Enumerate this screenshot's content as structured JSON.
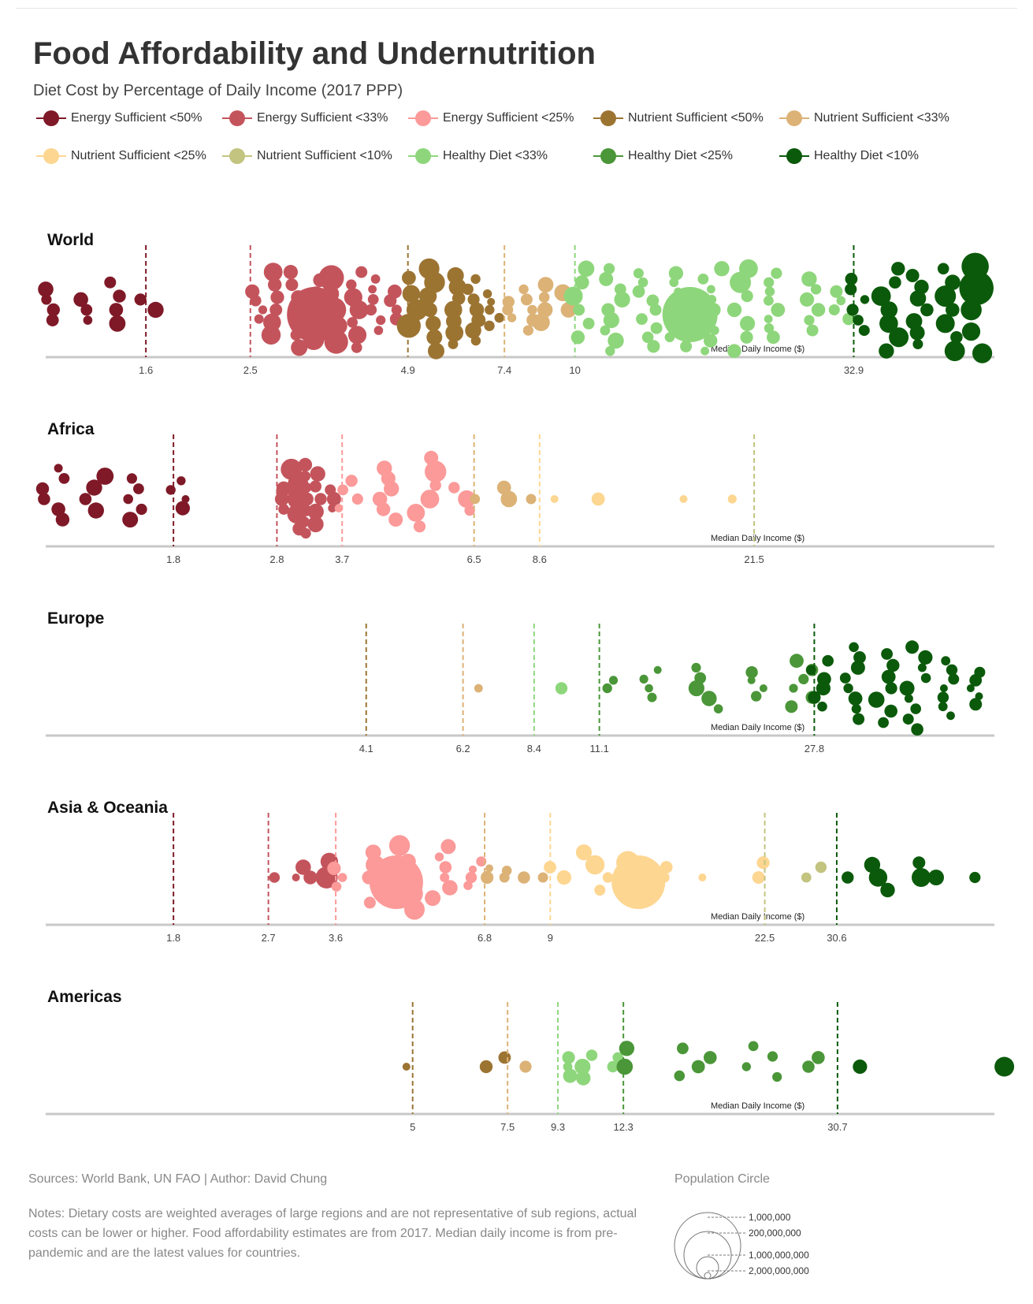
{
  "header": {
    "title": "Food Affordability and Undernutrition",
    "subtitle": "Diet Cost by Percentage of Daily Income (2017 PPP)"
  },
  "legend": [
    {
      "label": "Energy Sufficient <50%",
      "color": "#7f1927"
    },
    {
      "label": "Energy Sufficient <33%",
      "color": "#c4545c"
    },
    {
      "label": "Energy Sufficient <25%",
      "color": "#fb9a99"
    },
    {
      "label": "Nutrient Sufficient <50%",
      "color": "#9c7432"
    },
    {
      "label": "Nutrient Sufficient <33%",
      "color": "#dcb277"
    },
    {
      "label": "Nutrient Sufficient <25%",
      "color": "#fdd691"
    },
    {
      "label": "Nutrient Sufficient <10%",
      "color": "#c2c47f"
    },
    {
      "label": "Healthy Diet <33%",
      "color": "#8ed67b"
    },
    {
      "label": "Healthy Diet <25%",
      "color": "#4a9638"
    },
    {
      "label": "Healthy Diet <10%",
      "color": "#0b5a0b"
    }
  ],
  "axis_label": "Median Daily Income ($)",
  "chart_data": [
    {
      "type": "scatter",
      "title": "World",
      "xlabel": "Median Daily Income ($)",
      "thresholds": [
        {
          "value": 1.6,
          "label": "1.6",
          "category": 0
        },
        {
          "value": 2.5,
          "label": "2.5",
          "category": 1
        },
        {
          "value": 4.9,
          "label": "4.9",
          "category": 3
        },
        {
          "value": 7.4,
          "label": "7.4",
          "category": 4
        },
        {
          "value": 10,
          "label": "10",
          "category": 7
        },
        {
          "value": 32.9,
          "label": "32.9",
          "category": 9
        }
      ],
      "groups": [
        {
          "category": 0,
          "counts": [
            4,
            3,
            4,
            2
          ],
          "sizes": [
            18,
            18,
            24,
            18
          ]
        },
        {
          "category": 1,
          "counts": [
            4,
            6,
            9,
            12,
            10,
            8,
            6,
            4
          ],
          "sizes": [
            16,
            22,
            22,
            26,
            28,
            22,
            18,
            16
          ],
          "big": 70
        },
        {
          "category": 3,
          "counts": [
            4,
            8,
            9,
            7,
            5
          ],
          "sizes": [
            28,
            24,
            20,
            18,
            14
          ]
        },
        {
          "category": 4,
          "counts": [
            3,
            5,
            4,
            2
          ],
          "sizes": [
            14,
            18,
            22,
            30
          ]
        },
        {
          "category": 7,
          "counts": [
            6,
            9,
            12,
            14,
            12,
            10,
            8,
            6,
            4
          ],
          "sizes": [
            24,
            18,
            16,
            16,
            18,
            24,
            16,
            18,
            16
          ],
          "big": 70
        },
        {
          "category": 9,
          "counts": [
            6,
            8,
            9,
            8,
            6
          ],
          "sizes": [
            18,
            24,
            20,
            24,
            38
          ]
        }
      ]
    },
    {
      "type": "scatter",
      "title": "Africa",
      "xlabel": "Median Daily Income ($)",
      "thresholds": [
        {
          "value": 1.8,
          "label": "1.8",
          "category": 0
        },
        {
          "value": 2.8,
          "label": "2.8",
          "category": 1
        },
        {
          "value": 3.7,
          "label": "3.7",
          "category": 2
        },
        {
          "value": 6.5,
          "label": "6.5",
          "category": 4
        },
        {
          "value": 8.6,
          "label": "8.6",
          "category": 5
        },
        {
          "value": 21.5,
          "label": "21.5",
          "category": 6
        }
      ],
      "groups": [
        {
          "category": 0,
          "counts": [
            6,
            4,
            5,
            4
          ],
          "sizes": [
            18,
            20,
            18,
            16
          ]
        },
        {
          "category": 1,
          "counts": [
            3,
            5,
            7,
            5,
            3
          ],
          "sizes": [
            18,
            26,
            20,
            22,
            16
          ]
        },
        {
          "category": 2,
          "counts": [
            4,
            6,
            6,
            3
          ],
          "sizes": [
            16,
            18,
            24,
            20
          ]
        },
        {
          "category": 4,
          "counts": [
            1,
            2,
            1
          ],
          "sizes": [
            12,
            20,
            20
          ]
        },
        {
          "category": 5,
          "counts": [
            1,
            1,
            1,
            1
          ],
          "sizes": [
            14,
            16,
            12,
            12
          ]
        }
      ]
    },
    {
      "type": "scatter",
      "title": "Europe",
      "xlabel": "Median Daily Income ($)",
      "thresholds": [
        {
          "value": 4.1,
          "label": "4.1",
          "category": 3
        },
        {
          "value": 6.2,
          "label": "6.2",
          "category": 4
        },
        {
          "value": 8.4,
          "label": "8.4",
          "category": 7
        },
        {
          "value": 11.1,
          "label": "11.1",
          "category": 8
        },
        {
          "value": 27.8,
          "label": "27.8",
          "category": 9
        }
      ],
      "groups": [
        {
          "category": 4,
          "counts": [
            1
          ],
          "sizes": [
            14
          ]
        },
        {
          "category": 7,
          "counts": [
            1
          ],
          "sizes": [
            14
          ]
        },
        {
          "category": 8,
          "counts": [
            2,
            4,
            5,
            4,
            6
          ],
          "sizes": [
            14,
            16,
            18,
            14,
            16
          ]
        },
        {
          "category": 9,
          "counts": [
            6,
            8,
            10,
            9,
            7,
            5
          ],
          "sizes": [
            16,
            18,
            20,
            18,
            16,
            14
          ]
        }
      ]
    },
    {
      "type": "scatter",
      "title": "Asia & Oceania",
      "xlabel": "Median Daily Income ($)",
      "thresholds": [
        {
          "value": 1.8,
          "label": "1.8",
          "category": 0
        },
        {
          "value": 2.7,
          "label": "2.7",
          "category": 1
        },
        {
          "value": 3.6,
          "label": "3.6",
          "category": 2
        },
        {
          "value": 6.8,
          "label": "6.8",
          "category": 4
        },
        {
          "value": 9,
          "label": "9",
          "category": 5
        },
        {
          "value": 22.5,
          "label": "22.5",
          "category": 6
        },
        {
          "value": 30.6,
          "label": "30.6",
          "category": 9
        }
      ],
      "groups": [
        {
          "category": 1,
          "counts": [
            1,
            1,
            2,
            2
          ],
          "sizes": [
            12,
            12,
            18,
            28
          ]
        },
        {
          "category": 2,
          "counts": [
            3,
            5,
            7,
            6,
            4
          ],
          "sizes": [
            16,
            22,
            28,
            18,
            14
          ],
          "big": 68
        },
        {
          "category": 4,
          "counts": [
            2,
            2,
            1,
            1
          ],
          "sizes": [
            16,
            12,
            14,
            12
          ]
        },
        {
          "category": 5,
          "counts": [
            2,
            4,
            3,
            2,
            1,
            2
          ],
          "sizes": [
            18,
            22,
            26,
            18,
            12,
            26
          ],
          "big": 68
        },
        {
          "category": 6,
          "counts": [
            2
          ],
          "sizes": [
            18
          ]
        },
        {
          "category": 9,
          "counts": [
            1,
            3,
            2,
            1,
            1
          ],
          "sizes": [
            14,
            22,
            26,
            18,
            14
          ]
        }
      ]
    },
    {
      "type": "scatter",
      "title": "Americas",
      "xlabel": "Median Daily Income ($)",
      "thresholds": [
        {
          "value": 5,
          "label": "5",
          "category": 3
        },
        {
          "value": 7.5,
          "label": "7.5",
          "category": 4
        },
        {
          "value": 9.3,
          "label": "9.3",
          "category": 7
        },
        {
          "value": 12.3,
          "label": "12.3",
          "category": 8
        },
        {
          "value": 30.7,
          "label": "30.7",
          "category": 9
        }
      ],
      "groups": [
        {
          "category": 3,
          "counts": [
            1,
            2
          ],
          "sizes": [
            16,
            16
          ]
        },
        {
          "category": 4,
          "counts": [
            1
          ],
          "sizes": [
            14
          ]
        },
        {
          "category": 7,
          "counts": [
            3,
            3,
            2
          ],
          "sizes": [
            16,
            20,
            16
          ]
        },
        {
          "category": 8,
          "counts": [
            2,
            4,
            4,
            2
          ],
          "sizes": [
            32,
            16,
            18,
            16
          ]
        },
        {
          "category": 9,
          "counts": [
            1,
            1
          ],
          "sizes": [
            20,
            38
          ]
        }
      ]
    }
  ],
  "footer": {
    "sources": "Sources: World Bank, UN FAO | Author: David Chung",
    "notes": "Notes: Dietary costs are weighted averages of large regions and are not representative of sub regions, actual costs can be lower or higher. Food affordability estimates are from 2017. Median daily income is from pre-pandemic and are the latest values for countries."
  },
  "population_legend": {
    "title": "Population Circle",
    "entries": [
      "1,000,000",
      "200,000,000",
      "1,000,000,000",
      "2,000,000,000"
    ],
    "values": [
      1000000,
      200000000,
      1000000000,
      2000000000
    ]
  }
}
